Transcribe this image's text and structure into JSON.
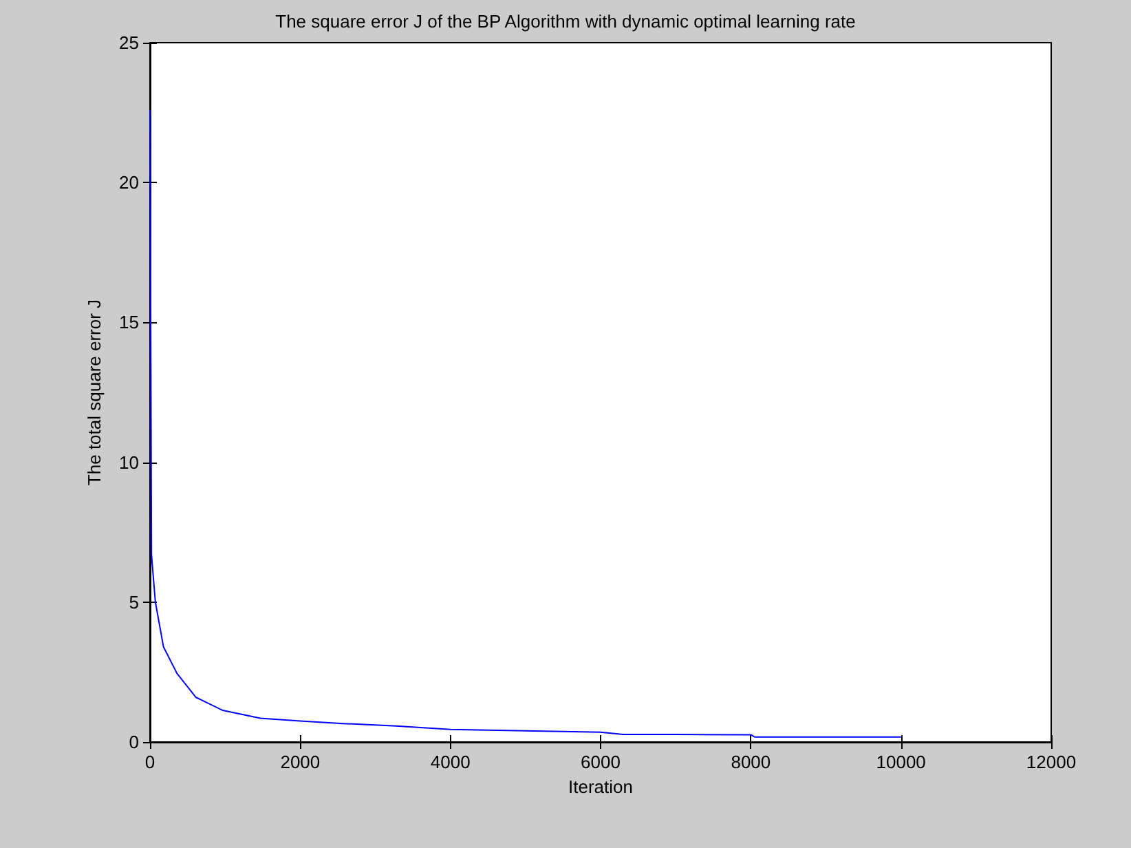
{
  "chart_data": {
    "type": "line",
    "title": "The square error J of the BP Algorithm with dynamic optimal learning rate",
    "xlabel": "Iteration",
    "ylabel": "The total square error J",
    "series": [
      {
        "color": "#0000ff",
        "x": [
          0,
          1,
          20,
          72,
          180,
          360,
          610,
          970,
          1470,
          2000,
          2570,
          3280,
          4000,
          5000,
          6000,
          6300,
          7000,
          8000,
          8050,
          9000,
          10000
        ],
        "values": [
          22.6,
          22.5,
          6.7,
          5.0,
          3.4,
          2.45,
          1.6,
          1.13,
          0.85,
          0.75,
          0.66,
          0.57,
          0.45,
          0.4,
          0.35,
          0.27,
          0.27,
          0.26,
          0.18,
          0.18,
          0.18
        ]
      }
    ],
    "xlim": [
      0,
      12000
    ],
    "xticks": [
      0,
      2000,
      4000,
      6000,
      8000,
      10000,
      12000
    ],
    "ylim": [
      0,
      25
    ],
    "yticks": [
      0,
      5,
      10,
      15,
      20,
      25
    ],
    "grid": false,
    "marker": "none",
    "line_style": "solid"
  }
}
